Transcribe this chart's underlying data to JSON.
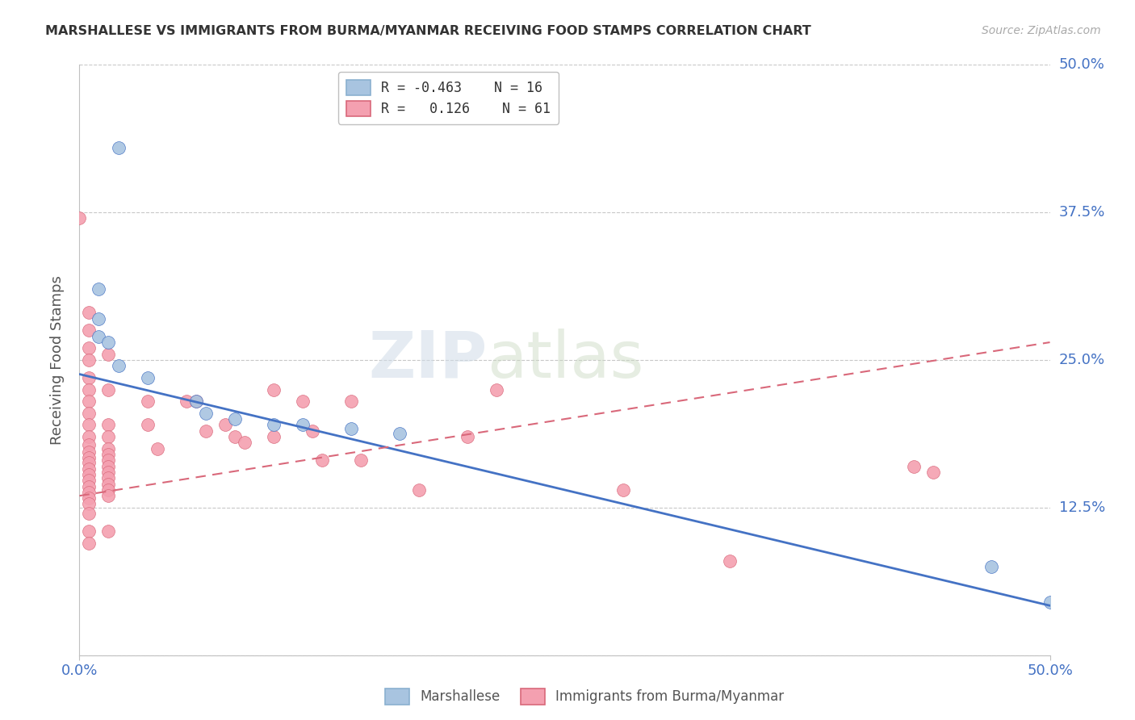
{
  "title": "MARSHALLESE VS IMMIGRANTS FROM BURMA/MYANMAR RECEIVING FOOD STAMPS CORRELATION CHART",
  "source": "Source: ZipAtlas.com",
  "ylabel": "Receiving Food Stamps",
  "xlim": [
    0.0,
    0.5
  ],
  "ylim": [
    0.0,
    0.5
  ],
  "yticks": [
    0.0,
    0.125,
    0.25,
    0.375,
    0.5
  ],
  "ytick_labels": [
    "",
    "12.5%",
    "25.0%",
    "37.5%",
    "50.0%"
  ],
  "xtick_left": "0.0%",
  "xtick_right": "50.0%",
  "color_blue": "#a8c4e0",
  "color_pink": "#f4a0b0",
  "line_blue": "#4472c4",
  "line_pink": "#d9687a",
  "watermark_zip": "ZIP",
  "watermark_atlas": "atlas",
  "blue_scatter": [
    [
      0.02,
      0.43
    ],
    [
      0.01,
      0.31
    ],
    [
      0.01,
      0.285
    ],
    [
      0.01,
      0.27
    ],
    [
      0.015,
      0.265
    ],
    [
      0.02,
      0.245
    ],
    [
      0.035,
      0.235
    ],
    [
      0.06,
      0.215
    ],
    [
      0.065,
      0.205
    ],
    [
      0.08,
      0.2
    ],
    [
      0.1,
      0.195
    ],
    [
      0.115,
      0.195
    ],
    [
      0.14,
      0.192
    ],
    [
      0.165,
      0.188
    ],
    [
      0.47,
      0.075
    ],
    [
      0.5,
      0.045
    ]
  ],
  "pink_scatter": [
    [
      0.0,
      0.37
    ],
    [
      0.005,
      0.29
    ],
    [
      0.005,
      0.275
    ],
    [
      0.005,
      0.26
    ],
    [
      0.005,
      0.25
    ],
    [
      0.005,
      0.235
    ],
    [
      0.005,
      0.225
    ],
    [
      0.005,
      0.215
    ],
    [
      0.005,
      0.205
    ],
    [
      0.005,
      0.195
    ],
    [
      0.005,
      0.185
    ],
    [
      0.005,
      0.178
    ],
    [
      0.005,
      0.172
    ],
    [
      0.005,
      0.167
    ],
    [
      0.005,
      0.163
    ],
    [
      0.005,
      0.158
    ],
    [
      0.005,
      0.153
    ],
    [
      0.005,
      0.148
    ],
    [
      0.005,
      0.143
    ],
    [
      0.005,
      0.138
    ],
    [
      0.005,
      0.133
    ],
    [
      0.005,
      0.128
    ],
    [
      0.005,
      0.12
    ],
    [
      0.005,
      0.105
    ],
    [
      0.005,
      0.095
    ],
    [
      0.015,
      0.255
    ],
    [
      0.015,
      0.225
    ],
    [
      0.015,
      0.195
    ],
    [
      0.015,
      0.185
    ],
    [
      0.015,
      0.175
    ],
    [
      0.015,
      0.17
    ],
    [
      0.015,
      0.165
    ],
    [
      0.015,
      0.16
    ],
    [
      0.015,
      0.155
    ],
    [
      0.015,
      0.15
    ],
    [
      0.015,
      0.145
    ],
    [
      0.015,
      0.14
    ],
    [
      0.015,
      0.135
    ],
    [
      0.015,
      0.105
    ],
    [
      0.035,
      0.215
    ],
    [
      0.035,
      0.195
    ],
    [
      0.04,
      0.175
    ],
    [
      0.055,
      0.215
    ],
    [
      0.06,
      0.215
    ],
    [
      0.065,
      0.19
    ],
    [
      0.075,
      0.195
    ],
    [
      0.08,
      0.185
    ],
    [
      0.085,
      0.18
    ],
    [
      0.1,
      0.185
    ],
    [
      0.1,
      0.225
    ],
    [
      0.115,
      0.215
    ],
    [
      0.12,
      0.19
    ],
    [
      0.125,
      0.165
    ],
    [
      0.14,
      0.215
    ],
    [
      0.145,
      0.165
    ],
    [
      0.175,
      0.14
    ],
    [
      0.2,
      0.185
    ],
    [
      0.215,
      0.225
    ],
    [
      0.28,
      0.14
    ],
    [
      0.335,
      0.08
    ],
    [
      0.43,
      0.16
    ],
    [
      0.44,
      0.155
    ]
  ],
  "blue_line_x0": 0.0,
  "blue_line_y0": 0.238,
  "blue_line_x1": 0.5,
  "blue_line_y1": 0.042,
  "pink_line_x0": 0.0,
  "pink_line_y0": 0.135,
  "pink_line_x1": 0.5,
  "pink_line_y1": 0.265
}
